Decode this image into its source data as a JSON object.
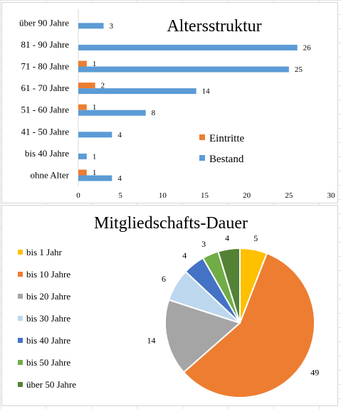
{
  "chart_data": [
    {
      "type": "bar",
      "orientation": "horizontal",
      "title": "Altersstruktur",
      "categories": [
        "über 90 Jahre",
        "81 - 90 Jahre",
        "71 - 80 Jahre",
        "61 - 70 Jahre",
        "51 - 60 Jahre",
        "41 - 50 Jahre",
        "bis 40 Jahre",
        "ohne Alter"
      ],
      "series": [
        {
          "name": "Eintritte",
          "color": "#ED7D31",
          "values": [
            null,
            null,
            1,
            2,
            1,
            null,
            null,
            1
          ]
        },
        {
          "name": "Bestand",
          "color": "#5B9BD5",
          "values": [
            3,
            26,
            25,
            14,
            8,
            4,
            1,
            4
          ]
        }
      ],
      "xlim": [
        0,
        30
      ],
      "x_ticks": [
        0,
        5,
        10,
        15,
        20,
        25,
        30
      ],
      "legend_position": "center-right",
      "grid": false
    },
    {
      "type": "pie",
      "title": "Mitgliedschafts-Dauer",
      "slices": [
        {
          "label": "bis 1 Jahr",
          "value": 5,
          "color": "#FFC000"
        },
        {
          "label": "bis 10 Jahre",
          "value": 49,
          "color": "#ED7D31"
        },
        {
          "label": "bis 20 Jahre",
          "value": 14,
          "color": "#A5A5A5"
        },
        {
          "label": "bis 30 Jahre",
          "value": 6,
          "color": "#BDD7EE"
        },
        {
          "label": "bis 40 Jahre",
          "value": 4,
          "color": "#4472C4"
        },
        {
          "label": "bis 50 Jahre",
          "value": 3,
          "color": "#70AD47"
        },
        {
          "label": "über 50 Jahre",
          "value": 4,
          "color": "#548235"
        }
      ],
      "legend_position": "left"
    }
  ]
}
